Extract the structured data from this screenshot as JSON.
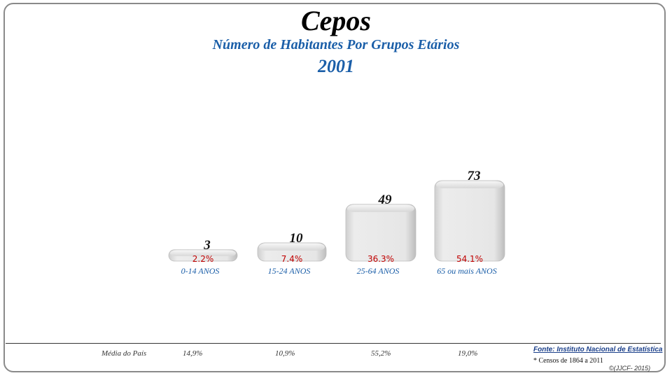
{
  "chart_data": {
    "type": "bar",
    "title": "Cepos",
    "subtitle": "Número de Habitantes Por Grupos Etários",
    "year": "2001",
    "categories": [
      "0-14 ANOS",
      "15-24 ANOS",
      "25-64 ANOS",
      "65 ou mais ANOS"
    ],
    "values": [
      3,
      10,
      49,
      73
    ],
    "percentages": [
      "2.2%",
      "7.4%",
      "36.3%",
      "54.1%"
    ],
    "ylim": [
      0,
      73
    ],
    "grid": false,
    "colors": {
      "bar": "#e4e4e4",
      "category": "#1a5ea8",
      "percent": "#c00000",
      "value": "#111111"
    }
  },
  "footer": {
    "media_label": "Média do País",
    "media_values": [
      "14,9%",
      "10,9%",
      "55,2%",
      "19,0%"
    ],
    "fonte": "Fonte: Instituto Nacional de Estatística",
    "censos": "* Censos de 1864 a 2011",
    "copyright": "©(JJCF- 2015)"
  }
}
